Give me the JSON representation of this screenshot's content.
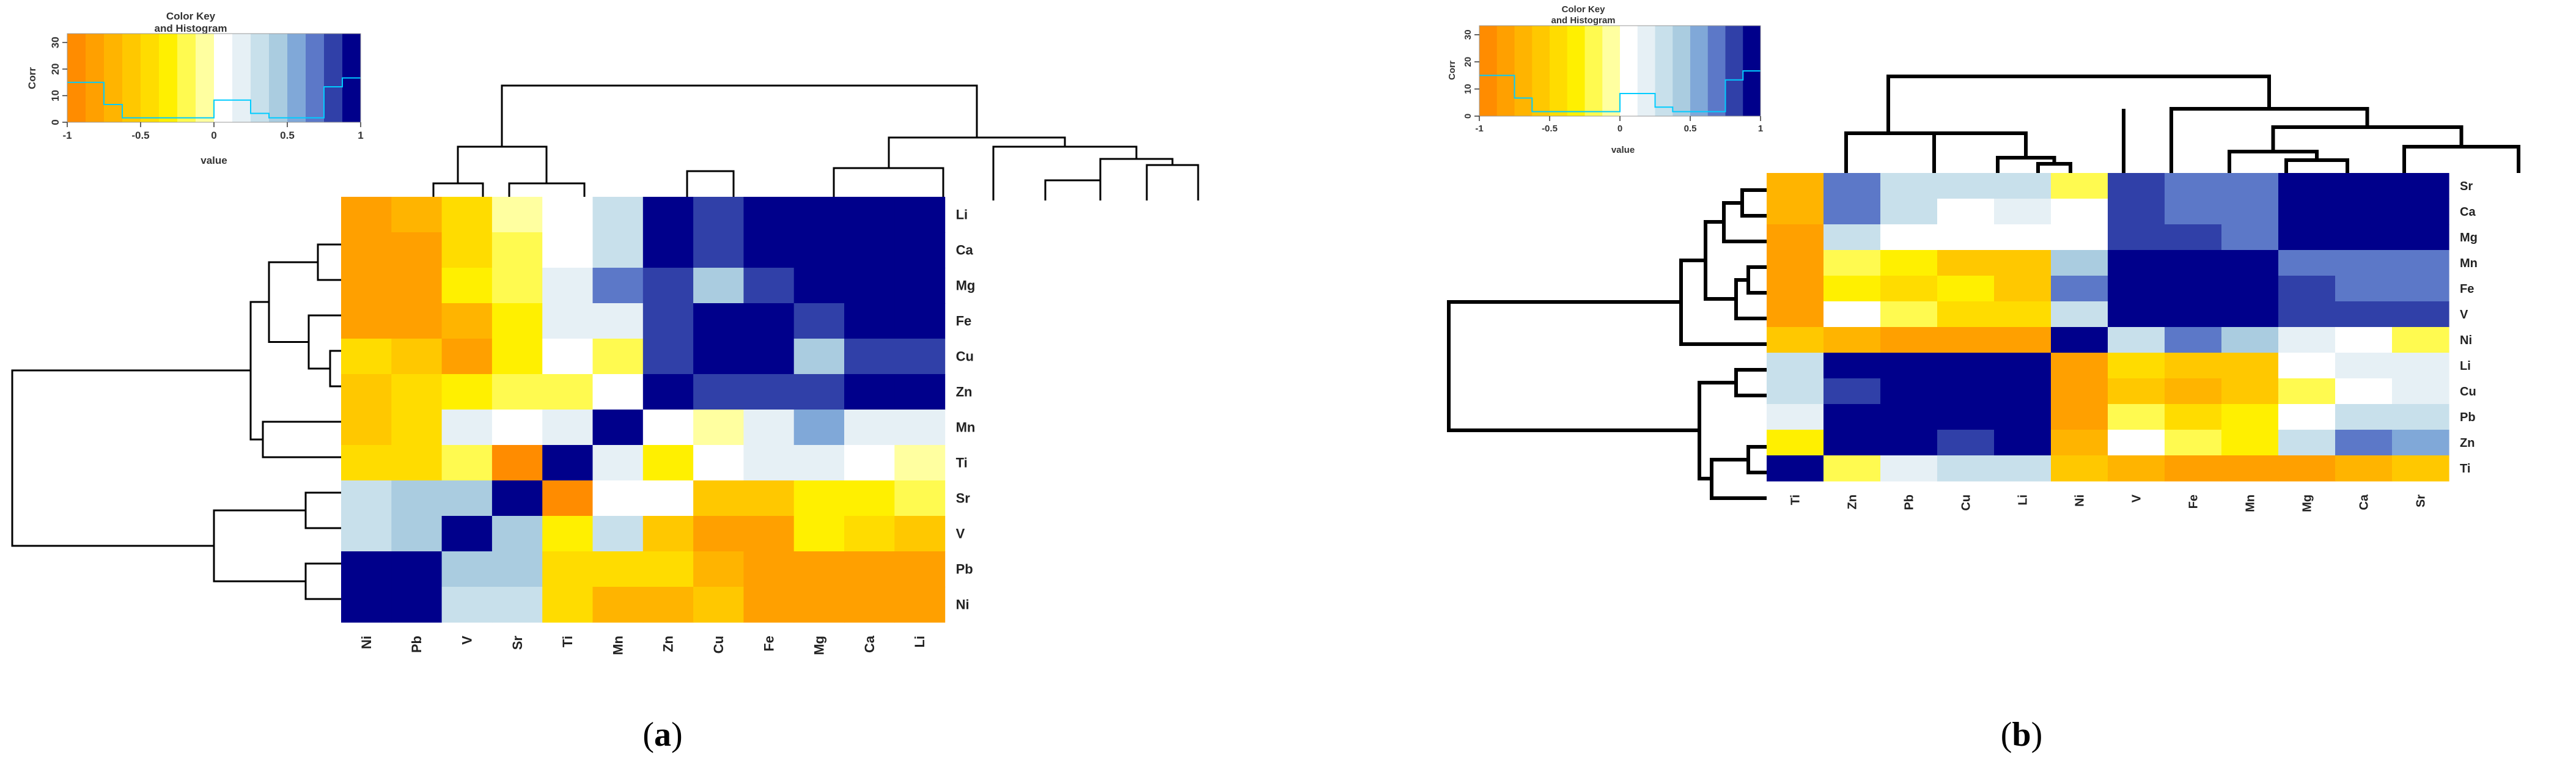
{
  "figure": {
    "panel_labels": [
      "(a)",
      "(b)"
    ],
    "label_letters": [
      "a",
      "b"
    ]
  },
  "color_key": {
    "title_line1": "Color Key",
    "title_line2": "and Histogram",
    "ylabel": "Corr",
    "xlabel": "value",
    "x_ticks": [
      "-1",
      "-0.5",
      "0",
      "0.5",
      "1"
    ],
    "y_ticks": [
      "0",
      "10",
      "20",
      "30"
    ],
    "gradient_colors": [
      "#FF8C00",
      "#FFA000",
      "#FFB400",
      "#FFC800",
      "#FFDC00",
      "#FFF000",
      "#FFFA50",
      "#FFFFA0",
      "#FFFFFF",
      "#E6F0F5",
      "#C8E0EB",
      "#AACCE0",
      "#80A8D8",
      "#5C78C8",
      "#3040A8",
      "#00008B"
    ],
    "hist_color": "#00CCFF"
  },
  "chart_data": [
    {
      "type": "heatmap",
      "panel": "(a)",
      "title": "",
      "xlabel": "",
      "ylabel": "",
      "columns": [
        "Ni",
        "Pb",
        "V",
        "Sr",
        "Ti",
        "Mn",
        "Zn",
        "Cu",
        "Fe",
        "Mg",
        "Ca",
        "Li"
      ],
      "rows": [
        "Li",
        "Ca",
        "Mg",
        "Fe",
        "Cu",
        "Zn",
        "Mn",
        "Ti",
        "Sr",
        "V",
        "Pb",
        "Ni"
      ],
      "value_range": [
        -1,
        1
      ],
      "values": [
        [
          -0.8,
          -0.75,
          -0.5,
          -0.1,
          0.0,
          0.3,
          1,
          0.9,
          1,
          1,
          1,
          1
        ],
        [
          -0.8,
          -0.8,
          -0.5,
          -0.2,
          0.1,
          0.3,
          1,
          0.85,
          1,
          1,
          1,
          1
        ],
        [
          -0.8,
          -0.8,
          -0.4,
          -0.25,
          0.15,
          0.7,
          0.9,
          0.4,
          0.9,
          1,
          1,
          1
        ],
        [
          -0.8,
          -0.8,
          -0.7,
          -0.35,
          0.15,
          0.15,
          0.9,
          1,
          1,
          0.8,
          1,
          1
        ],
        [
          -0.5,
          -0.6,
          -0.8,
          -0.35,
          0.05,
          -0.15,
          0.9,
          1,
          1,
          0.45,
          0.85,
          0.85
        ],
        [
          -0.65,
          -0.5,
          -0.4,
          -0.15,
          -0.15,
          0.1,
          1,
          0.9,
          0.9,
          0.9,
          1,
          1
        ],
        [
          -0.65,
          -0.5,
          0.2,
          0.05,
          0.15,
          1,
          0.1,
          -0.1,
          0.15,
          0.65,
          0.2,
          0.2
        ],
        [
          -0.5,
          -0.5,
          -0.2,
          -0.95,
          1,
          0.15,
          -0.4,
          0.05,
          0.15,
          0.15,
          0.05,
          -0.05
        ],
        [
          0.3,
          0.4,
          0.4,
          1,
          -0.95,
          0.05,
          0.1,
          -0.6,
          -0.6,
          -0.4,
          -0.35,
          -0.2
        ],
        [
          0.3,
          0.4,
          1,
          0.4,
          -0.3,
          0.3,
          -0.6,
          -0.8,
          -0.9,
          -0.4,
          -0.5,
          -0.6
        ],
        [
          1,
          1,
          0.4,
          0.4,
          -0.5,
          -0.5,
          -0.5,
          -0.7,
          -0.9,
          -0.9,
          -0.9,
          -0.8
        ],
        [
          1,
          1,
          0.3,
          0.3,
          -0.5,
          -0.7,
          -0.7,
          -0.6,
          -0.9,
          -0.9,
          -0.9,
          -0.9
        ]
      ]
    },
    {
      "type": "heatmap",
      "panel": "(b)",
      "title": "",
      "xlabel": "",
      "ylabel": "",
      "columns": [
        "Ti",
        "Zn",
        "Pb",
        "Cu",
        "Li",
        "Ni",
        "V",
        "Fe",
        "Mn",
        "Mg",
        "Ca",
        "Sr"
      ],
      "rows": [
        "Sr",
        "Ca",
        "Mg",
        "Mn",
        "Fe",
        "V",
        "Ni",
        "Li",
        "Cu",
        "Pb",
        "Zn",
        "Ti"
      ],
      "value_range": [
        -1,
        1
      ],
      "values": [
        [
          -0.7,
          0.7,
          0.3,
          0.3,
          0.3,
          -0.2,
          0.85,
          0.7,
          0.7,
          1,
          1,
          1
        ],
        [
          -0.75,
          0.7,
          0.3,
          0.1,
          0.2,
          0.0,
          0.85,
          0.7,
          0.7,
          1,
          1,
          1
        ],
        [
          -0.85,
          0.3,
          0.0,
          0.0,
          0.1,
          0.1,
          0.85,
          0.85,
          0.75,
          1,
          1,
          1
        ],
        [
          -0.8,
          -0.2,
          -0.4,
          -0.6,
          -0.6,
          0.5,
          1,
          1,
          1,
          0.7,
          0.7,
          0.7
        ],
        [
          -0.8,
          -0.3,
          -0.5,
          -0.4,
          -0.55,
          0.7,
          1,
          1,
          1,
          0.85,
          0.7,
          0.7
        ],
        [
          -0.8,
          0.1,
          -0.25,
          -0.5,
          -0.45,
          0.3,
          1,
          1,
          1,
          0.85,
          0.85,
          0.85
        ],
        [
          -0.55,
          -0.7,
          -0.85,
          -0.85,
          -0.85,
          1,
          0.3,
          0.7,
          0.4,
          0.15,
          0.0,
          -0.2
        ],
        [
          0.3,
          1,
          1,
          1,
          1,
          -0.9,
          -0.5,
          -0.6,
          -0.6,
          0.05,
          0.15,
          0.2
        ],
        [
          0.3,
          0.85,
          1,
          1,
          1,
          -0.9,
          -0.6,
          -0.75,
          -0.6,
          -0.15,
          0.1,
          0.2
        ],
        [
          0.15,
          1,
          1,
          1,
          1,
          -0.85,
          -0.2,
          -0.5,
          -0.3,
          0.05,
          0.3,
          0.3
        ],
        [
          -0.3,
          1,
          1,
          0.9,
          1,
          -0.7,
          0.1,
          -0.2,
          -0.3,
          0.3,
          0.7,
          0.65
        ],
        [
          1,
          -0.2,
          0.2,
          0.3,
          0.3,
          -0.6,
          -0.75,
          -0.8,
          -0.8,
          -0.85,
          -0.7,
          -0.6
        ]
      ]
    }
  ]
}
